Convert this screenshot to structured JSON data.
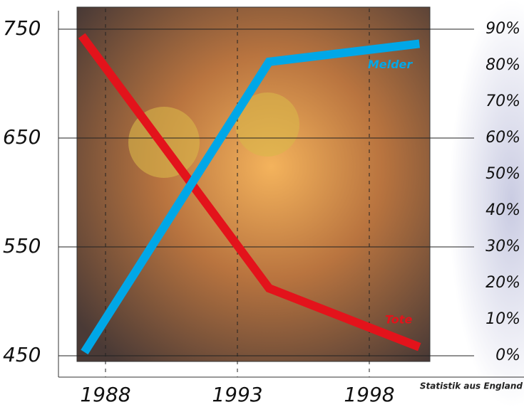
{
  "chart_data": {
    "type": "line",
    "source": "Statistik aus England",
    "xlim": [
      1986,
      2003
    ],
    "xticks": [
      1988,
      1993,
      1998
    ],
    "ylim": [
      450,
      750
    ],
    "yticks": [
      450,
      550,
      650,
      750
    ],
    "y2lim": [
      0,
      90
    ],
    "y2ticks": [
      {
        "value": 0,
        "label": "0%"
      },
      {
        "value": 10,
        "label": "10%"
      },
      {
        "value": 20,
        "label": "20%"
      },
      {
        "value": 30,
        "label": "30%"
      },
      {
        "value": 40,
        "label": "40%"
      },
      {
        "value": 50,
        "label": "50%"
      },
      {
        "value": 60,
        "label": "60%"
      },
      {
        "value": 70,
        "label": "70%"
      },
      {
        "value": 80,
        "label": "80%"
      },
      {
        "value": 90,
        "label": "90%"
      }
    ],
    "grid": true,
    "series": [
      {
        "name": "Tote",
        "color": "#e3131b",
        "x": [
          1987.1,
          1994.2,
          1999.9
        ],
        "values": [
          744,
          512,
          458
        ]
      },
      {
        "name": "Melder",
        "color": "#00a7e7",
        "axis": "y2",
        "x": [
          1987.2,
          1994.2,
          1999.9
        ],
        "values": [
          1,
          81,
          86
        ]
      }
    ]
  }
}
